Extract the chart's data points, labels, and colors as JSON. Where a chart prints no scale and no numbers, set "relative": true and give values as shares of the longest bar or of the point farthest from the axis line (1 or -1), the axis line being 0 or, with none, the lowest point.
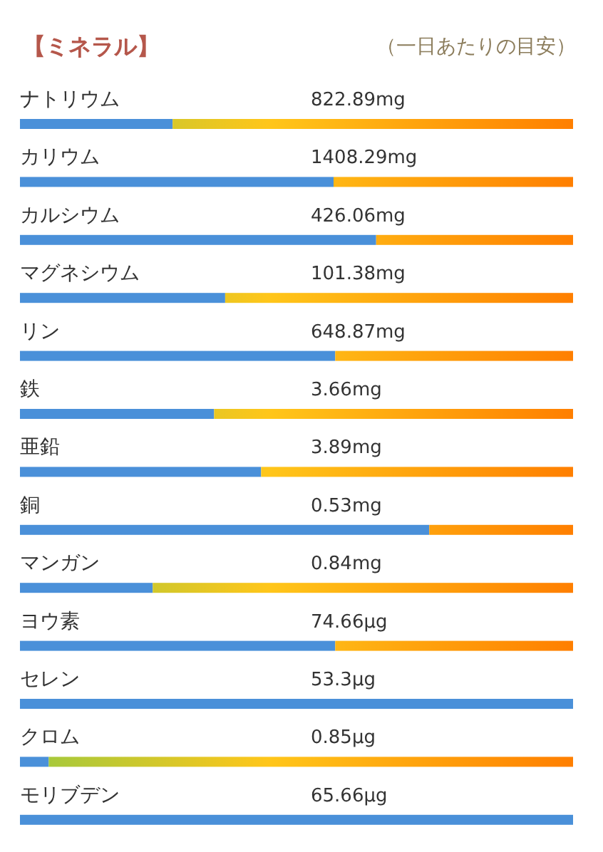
{
  "chart_data": {
    "type": "bar",
    "orientation": "horizontal",
    "relative": true,
    "stacked": true,
    "title": "【ミネラル】",
    "subtitle": "（一日あたりの目安）",
    "categories": [
      "ナトリウム",
      "カリウム",
      "カルシウム",
      "マグネシウム",
      "リン",
      "鉄",
      "亜鉛",
      "銅",
      "マンガン",
      "ヨウ素",
      "セレン",
      "クロム",
      "モリブデン"
    ],
    "series": [
      {
        "color": "#4a90d9",
        "values": [
          0.276,
          0.567,
          0.644,
          0.371,
          0.57,
          0.351,
          0.436,
          0.74,
          0.24,
          0.57,
          1,
          0.052,
          1
        ]
      },
      {
        "color": "#ff7f00",
        "values": [
          0.724,
          0.433,
          0.356,
          0.629,
          0.43,
          0.649,
          0.564,
          0.26,
          0.76,
          0.43,
          0,
          0.948,
          0
        ]
      }
    ],
    "annotations": [
      {
        "text": "822.89mg",
        "y": "ナトリウム"
      },
      {
        "text": "1408.29mg",
        "y": "カリウム"
      },
      {
        "text": "426.06mg",
        "y": "カルシウム"
      },
      {
        "text": "101.38mg",
        "y": "マグネシウム"
      },
      {
        "text": "648.87mg",
        "y": "リン"
      },
      {
        "text": "3.66mg",
        "y": "鉄"
      },
      {
        "text": "3.89mg",
        "y": "亜鉛"
      },
      {
        "text": "0.53mg",
        "y": "銅"
      },
      {
        "text": "0.84mg",
        "y": "マンガン"
      },
      {
        "text": "74.66μg",
        "y": "ヨウ素"
      },
      {
        "text": "53.3μg",
        "y": "セレン"
      },
      {
        "text": "0.85μg",
        "y": "クロム"
      },
      {
        "text": "65.66μg",
        "y": "モリブデン"
      }
    ]
  }
}
